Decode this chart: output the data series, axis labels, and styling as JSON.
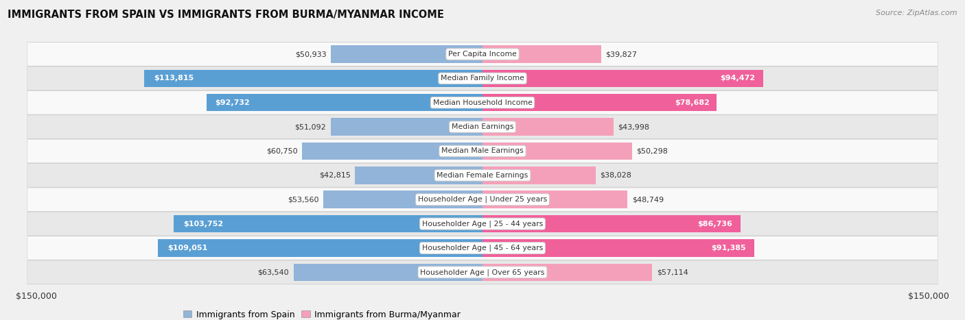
{
  "title": "IMMIGRANTS FROM SPAIN VS IMMIGRANTS FROM BURMA/MYANMAR INCOME",
  "source": "Source: ZipAtlas.com",
  "categories": [
    "Per Capita Income",
    "Median Family Income",
    "Median Household Income",
    "Median Earnings",
    "Median Male Earnings",
    "Median Female Earnings",
    "Householder Age | Under 25 years",
    "Householder Age | 25 - 44 years",
    "Householder Age | 45 - 64 years",
    "Householder Age | Over 65 years"
  ],
  "spain_values": [
    50933,
    113815,
    92732,
    51092,
    60750,
    42815,
    53560,
    103752,
    109051,
    63540
  ],
  "burma_values": [
    39827,
    94472,
    78682,
    43998,
    50298,
    38028,
    48749,
    86736,
    91385,
    57114
  ],
  "spain_labels": [
    "$50,933",
    "$113,815",
    "$92,732",
    "$51,092",
    "$60,750",
    "$42,815",
    "$53,560",
    "$103,752",
    "$109,051",
    "$63,540"
  ],
  "burma_labels": [
    "$39,827",
    "$94,472",
    "$78,682",
    "$43,998",
    "$50,298",
    "$38,028",
    "$48,749",
    "$86,736",
    "$91,385",
    "$57,114"
  ],
  "spain_color": "#91b4d8",
  "spain_color_bright": "#5a9fd4",
  "burma_color": "#f5a0ba",
  "burma_color_bright": "#f0609a",
  "max_value": 150000,
  "bg_color": "#f0f0f0",
  "row_colors": [
    "#f9f9f9",
    "#e8e8e8"
  ],
  "row_border_color": "#d0d0d0",
  "legend_spain": "Immigrants from Spain",
  "legend_burma": "Immigrants from Burma/Myanmar",
  "spain_inside_threshold": 75000,
  "burma_inside_threshold": 75000
}
